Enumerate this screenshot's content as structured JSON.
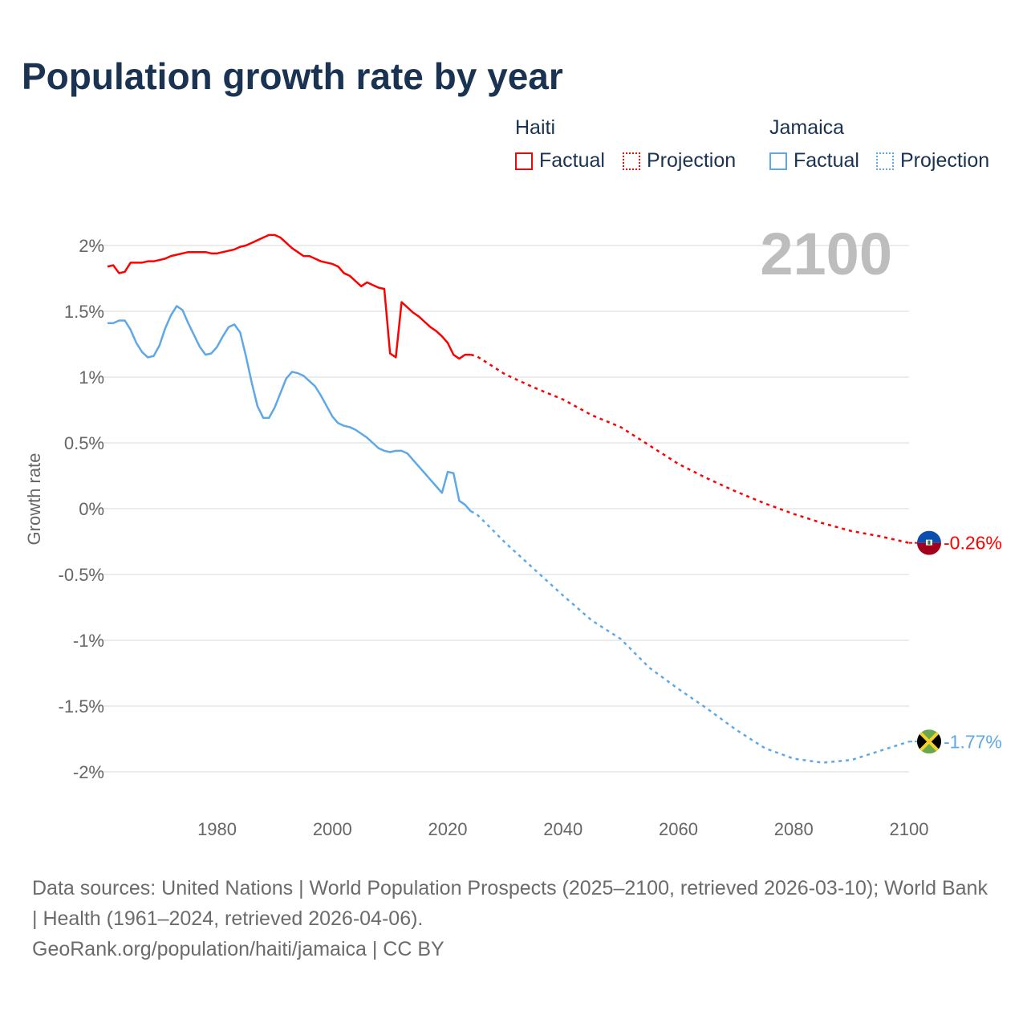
{
  "chart_data": {
    "type": "line",
    "title": "Population growth rate by year",
    "ylabel": "Growth rate",
    "xlabel": "",
    "xlim": [
      1961,
      2100
    ],
    "ylim": [
      -2.3,
      2.2
    ],
    "yticks": [
      2,
      1.5,
      1,
      0.5,
      0,
      -0.5,
      -1,
      -1.5,
      -2
    ],
    "ytick_labels": [
      "2%",
      "1.5%",
      "1%",
      "0.5%",
      "0%",
      "-0.5%",
      "-1%",
      "-1.5%",
      "-2%"
    ],
    "xticks": [
      1980,
      2000,
      2020,
      2040,
      2060,
      2080,
      2100
    ],
    "xtick_labels": [
      "1980",
      "2000",
      "2020",
      "2040",
      "2060",
      "2080",
      "2100"
    ],
    "grid": true,
    "legend_position": "top-right",
    "current_year_label": "2100",
    "series": [
      {
        "name": "Haiti",
        "color": "#ff0000",
        "end_label": "-0.26%",
        "factual": {
          "start_year": 1961,
          "values": [
            1.84,
            1.85,
            1.79,
            1.8,
            1.87,
            1.87,
            1.87,
            1.88,
            1.88,
            1.89,
            1.9,
            1.92,
            1.93,
            1.94,
            1.95,
            1.95,
            1.95,
            1.95,
            1.94,
            1.94,
            1.95,
            1.96,
            1.97,
            1.99,
            2.0,
            2.02,
            2.04,
            2.06,
            2.08,
            2.08,
            2.06,
            2.02,
            1.98,
            1.95,
            1.92,
            1.92,
            1.9,
            1.88,
            1.87,
            1.86,
            1.84,
            1.79,
            1.77,
            1.73,
            1.69,
            1.72,
            1.7,
            1.68,
            1.67,
            1.18,
            1.15,
            1.57,
            1.53,
            1.49,
            1.46,
            1.42,
            1.38,
            1.35,
            1.31,
            1.26,
            1.17,
            1.14,
            1.17,
            1.17
          ]
        },
        "projection": {
          "years": [
            2024,
            2025,
            2030,
            2035,
            2040,
            2045,
            2050,
            2055,
            2060,
            2065,
            2070,
            2075,
            2080,
            2085,
            2090,
            2095,
            2100
          ],
          "values": [
            1.17,
            1.16,
            1.02,
            0.92,
            0.83,
            0.71,
            0.62,
            0.48,
            0.34,
            0.23,
            0.13,
            0.04,
            -0.04,
            -0.11,
            -0.17,
            -0.21,
            -0.26
          ]
        }
      },
      {
        "name": "Jamaica",
        "color": "#5fa8e8",
        "end_label": "-1.77%",
        "factual": {
          "start_year": 1961,
          "values": [
            1.41,
            1.41,
            1.43,
            1.43,
            1.36,
            1.26,
            1.19,
            1.15,
            1.16,
            1.24,
            1.37,
            1.47,
            1.54,
            1.51,
            1.41,
            1.32,
            1.23,
            1.17,
            1.18,
            1.23,
            1.31,
            1.38,
            1.4,
            1.34,
            1.16,
            0.96,
            0.78,
            0.69,
            0.69,
            0.77,
            0.88,
            0.99,
            1.04,
            1.03,
            1.01,
            0.97,
            0.93,
            0.86,
            0.78,
            0.7,
            0.65,
            0.63,
            0.62,
            0.6,
            0.57,
            0.54,
            0.5,
            0.46,
            0.44,
            0.43,
            0.44,
            0.44,
            0.42,
            0.37,
            0.32,
            0.27,
            0.22,
            0.17,
            0.12,
            0.28,
            0.27,
            0.06,
            0.03,
            -0.02
          ]
        },
        "projection": {
          "years": [
            2024,
            2025,
            2030,
            2035,
            2040,
            2045,
            2050,
            2055,
            2060,
            2065,
            2070,
            2075,
            2080,
            2085,
            2090,
            2095,
            2100
          ],
          "values": [
            -0.02,
            -0.04,
            -0.26,
            -0.46,
            -0.66,
            -0.85,
            -0.99,
            -1.21,
            -1.37,
            -1.52,
            -1.68,
            -1.82,
            -1.9,
            -1.93,
            -1.91,
            -1.84,
            -1.77
          ]
        }
      }
    ]
  },
  "legend": {
    "groups": [
      {
        "name": "Haiti",
        "factual": "Factual",
        "projection": "Projection",
        "color": "#ff0000"
      },
      {
        "name": "Jamaica",
        "factual": "Factual",
        "projection": "Projection",
        "color": "#5fa8e8"
      }
    ]
  },
  "footer": {
    "sources": "Data sources: United Nations | World Population Prospects (2025–2100, retrieved 2026-03-10); World Bank | Health (1961–2024, retrieved 2026-04-06).",
    "credit": "GeoRank.org/population/haiti/jamaica | CC BY"
  }
}
